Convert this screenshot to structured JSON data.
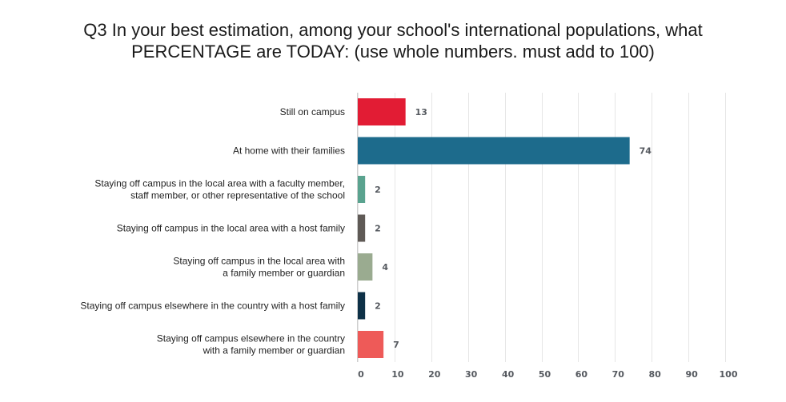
{
  "chart_data": {
    "type": "bar",
    "orientation": "horizontal",
    "title_lines": [
      "Q3 In your best estimation, among your school's international populations, what",
      "PERCENTAGE are TODAY: (use whole numbers. must add to 100)"
    ],
    "categories": [
      [
        "Still on campus"
      ],
      [
        "At home with their families"
      ],
      [
        "Staying off campus in the local area with a faculty member,",
        "staff member, or other representative of the school"
      ],
      [
        "Staying off campus in the local area with a host family"
      ],
      [
        "Staying off campus in the local area with",
        "a family member or guardian"
      ],
      [
        "Staying off campus elsewhere in the country with a host family"
      ],
      [
        "Staying off campus elsewhere in the country",
        "with a family member or guardian"
      ]
    ],
    "values": [
      13,
      74,
      2,
      2,
      4,
      2,
      7
    ],
    "value_labels": [
      "13",
      "74",
      "2",
      "2",
      "4",
      "2",
      "7"
    ],
    "colors": [
      "#e21c34",
      "#1d6b8c",
      "#5aa38f",
      "#5f5a56",
      "#9aab90",
      "#0e3147",
      "#ee5a58"
    ],
    "xlim": [
      0,
      100
    ],
    "xticks": [
      0,
      10,
      20,
      30,
      40,
      50,
      60,
      70,
      80,
      90,
      100
    ],
    "xtick_labels": [
      "0",
      "10",
      "20",
      "30",
      "40",
      "50",
      "60",
      "70",
      "80",
      "90",
      "100"
    ],
    "grid": true,
    "legend": "none"
  }
}
